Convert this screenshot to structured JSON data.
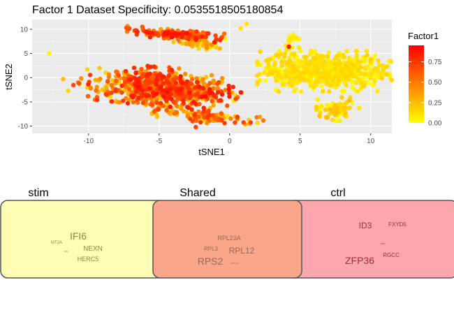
{
  "chart_data": [
    {
      "type": "scatter",
      "title": "Factor 1 Dataset Specificity: 0.0535518505180854",
      "xlabel": "tSNE1",
      "ylabel": "tSNE2",
      "xlim": [
        -14,
        11.5
      ],
      "ylim": [
        -11.5,
        12
      ],
      "x_ticks": [
        -10,
        -5,
        0,
        5,
        10
      ],
      "y_ticks": [
        -10,
        -5,
        0,
        5,
        10
      ],
      "grid": true,
      "legend": {
        "title": "Factor1",
        "position": "right",
        "min": 0,
        "max": 0.95,
        "ticks": [
          0.0,
          0.25,
          0.5,
          0.75
        ],
        "tick_labels": [
          "0.00",
          "0.25",
          "0.50",
          "0.75"
        ],
        "colors": [
          "#ffff00",
          "#ff0000"
        ]
      },
      "clusters": [
        {
          "cx": -4.0,
          "cy": 9.0,
          "sx": 1.6,
          "sy": 0.45,
          "angle": -0.22,
          "n": 160,
          "vmin": 0.35,
          "vmax": 0.9
        },
        {
          "cx": -2.0,
          "cy": 7.1,
          "sx": 0.9,
          "sy": 0.5,
          "angle": -0.3,
          "n": 45,
          "vmin": 0.05,
          "vmax": 0.45
        },
        {
          "cx": -6.0,
          "cy": -1.5,
          "sx": 2.2,
          "sy": 1.8,
          "angle": -0.3,
          "n": 420,
          "vmin": 0.1,
          "vmax": 0.85
        },
        {
          "cx": -3.5,
          "cy": -3.0,
          "sx": 1.9,
          "sy": 1.4,
          "angle": -0.35,
          "n": 330,
          "vmin": 0.15,
          "vmax": 0.9
        },
        {
          "cx": -1.5,
          "cy": -8.0,
          "sx": 1.8,
          "sy": 0.6,
          "angle": -0.35,
          "n": 120,
          "vmin": 0.1,
          "vmax": 0.75
        },
        {
          "cx": 6.8,
          "cy": 1.3,
          "sx": 2.2,
          "sy": 1.9,
          "angle": 0.0,
          "n": 650,
          "vmin": 0.0,
          "vmax": 0.16
        },
        {
          "cx": 4.5,
          "cy": 7.5,
          "sx": 0.25,
          "sy": 1.0,
          "angle": 0.0,
          "n": 20,
          "vmin": 0.0,
          "vmax": 0.1
        },
        {
          "cx": 7.7,
          "cy": -6.5,
          "sx": 0.7,
          "sy": 1.1,
          "angle": 0.0,
          "n": 80,
          "vmin": 0.0,
          "vmax": 0.25
        }
      ],
      "points": [
        {
          "x": -12.8,
          "y": 5.0,
          "v": 0.05
        },
        {
          "x": -11.8,
          "y": -0.3,
          "v": 0.25
        },
        {
          "x": -0.3,
          "y": 8.0,
          "v": 0.05
        },
        {
          "x": 0.8,
          "y": 10.2,
          "v": 0.1
        },
        {
          "x": 1.2,
          "y": 11.1,
          "v": 0.1
        },
        {
          "x": 0.3,
          "y": -4.8,
          "v": 0.1
        },
        {
          "x": -2.4,
          "y": -10.2,
          "v": 0.7
        },
        {
          "x": 2.6,
          "y": 1.6,
          "v": 0.03
        },
        {
          "x": 4.2,
          "y": 6.4,
          "v": 0.85
        },
        {
          "x": 4.0,
          "y": 6.6,
          "v": 0.1
        }
      ]
    }
  ],
  "venn": {
    "labels": [
      "stim",
      "Shared",
      "ctrl"
    ],
    "colors": {
      "stim": "#fffcb3",
      "shared": "#f9a68a",
      "ctrl": "#fca7ae"
    },
    "text_colors": {
      "stim": "#8f8a45",
      "shared": "#a36551",
      "ctrl": "#9e2c3a"
    },
    "stim_words": [
      "IFI6",
      "MT2A",
      "NEXN",
      "MX1",
      "HERC5"
    ],
    "shared_words": [
      "RPL23A",
      "RPL3",
      "RPL12",
      "RPS2",
      "RPL13A"
    ],
    "ctrl_words": [
      "ID3",
      "FXYD5",
      "MX1",
      "RGCC",
      "ZFP36"
    ]
  }
}
